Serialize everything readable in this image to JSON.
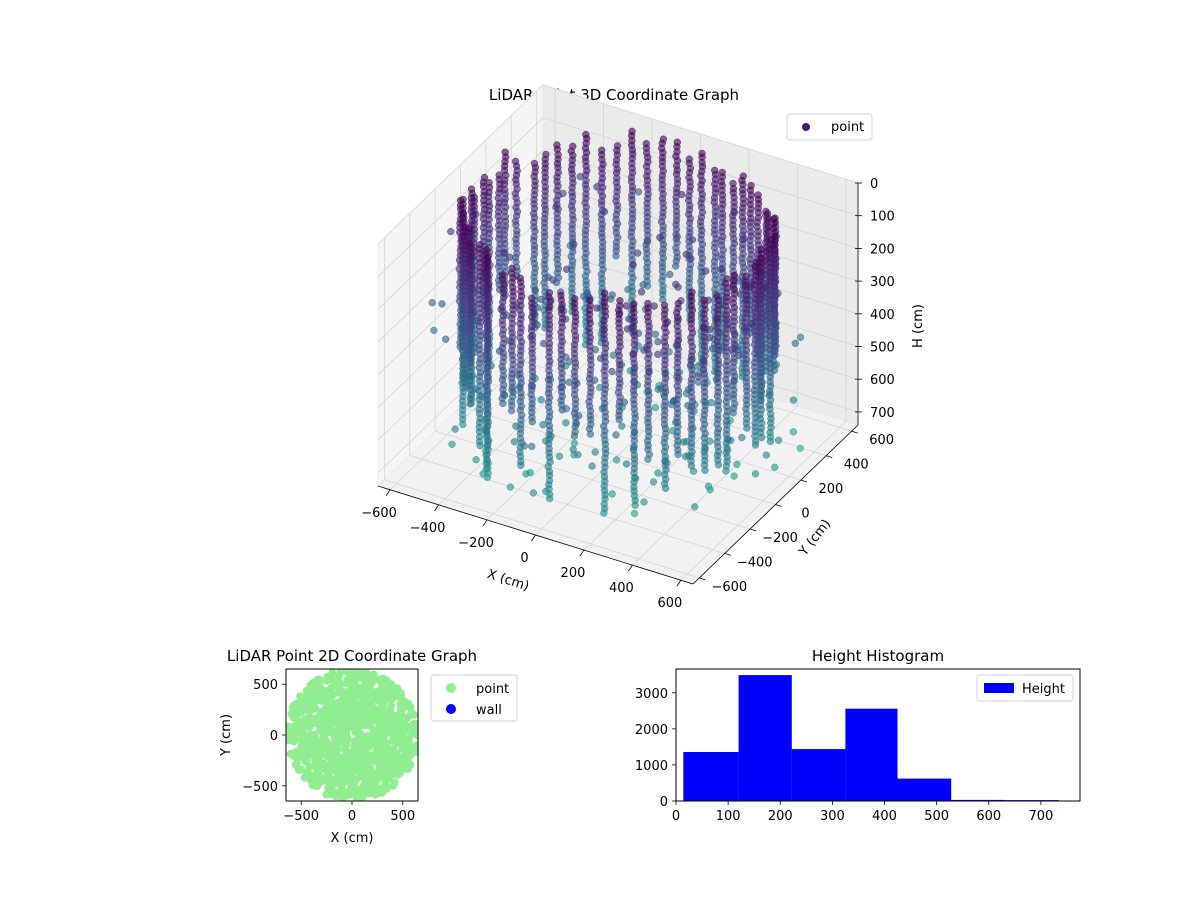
{
  "chart_data": [
    {
      "type": "scatter3d",
      "title": "LiDAR Point 3D Coordinate Graph",
      "xlabel": "X (cm)",
      "ylabel": "Y (cm)",
      "zlabel": "H (cm)",
      "xticks": [
        -600,
        -400,
        -200,
        0,
        200,
        400,
        600
      ],
      "yticks": [
        -600,
        -400,
        -200,
        0,
        200,
        400,
        600
      ],
      "zticks": [
        0,
        100,
        200,
        300,
        400,
        500,
        600,
        700
      ],
      "xlim": [
        -650,
        650
      ],
      "ylim": [
        -650,
        650
      ],
      "zlim": [
        0,
        740
      ],
      "z_inverted": true,
      "colormap": "viridis",
      "legend": {
        "position": "upper-right",
        "entries": [
          {
            "label": "point",
            "color": "#46176e"
          }
        ]
      },
      "grid": true,
      "description_shape": "ring of vertical point columns, radius about 560 cm, heights 0-740 cm, with sparse scattered points below and inside"
    },
    {
      "type": "scatter",
      "title": "LiDAR Point 2D Coordinate Graph",
      "xlabel": "X (cm)",
      "ylabel": "Y (cm)",
      "xticks": [
        -500,
        0,
        500
      ],
      "yticks": [
        -500,
        0,
        500
      ],
      "xlim": [
        -650,
        650
      ],
      "ylim": [
        -650,
        650
      ],
      "series": [
        {
          "name": "point",
          "color": "#90ee90"
        },
        {
          "name": "wall",
          "color": "#0000ff"
        }
      ],
      "legend": {
        "position": "outside-right"
      }
    },
    {
      "type": "bar",
      "title": "Height Histogram",
      "xlabel": "",
      "ylabel": "",
      "bins": [
        {
          "start": 14,
          "end": 120,
          "count": 1360
        },
        {
          "start": 120,
          "end": 222,
          "count": 3490
        },
        {
          "start": 222,
          "end": 325,
          "count": 1440
        },
        {
          "start": 325,
          "end": 425,
          "count": 2560
        },
        {
          "start": 425,
          "end": 528,
          "count": 620
        },
        {
          "start": 528,
          "end": 630,
          "count": 30
        },
        {
          "start": 630,
          "end": 735,
          "count": 25
        }
      ],
      "xticks": [
        0,
        100,
        200,
        300,
        400,
        500,
        600,
        700
      ],
      "yticks": [
        0,
        1000,
        2000,
        3000
      ],
      "xlim": [
        0,
        775
      ],
      "ylim": [
        0,
        3660
      ],
      "color": "#0000ff",
      "legend": {
        "position": "upper-right",
        "entries": [
          {
            "label": "Height",
            "color": "#0000ff"
          }
        ]
      }
    }
  ]
}
